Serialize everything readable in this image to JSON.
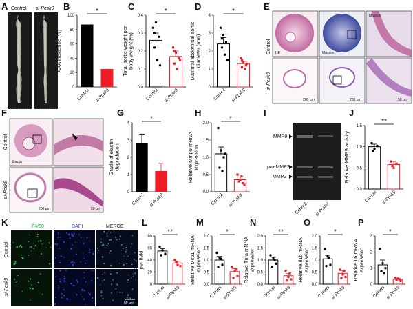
{
  "figure": {
    "panel_letters": [
      "A",
      "B",
      "C",
      "D",
      "E",
      "F",
      "G",
      "H",
      "I",
      "J",
      "K",
      "L",
      "M",
      "N",
      "O",
      "P"
    ],
    "group_labels": {
      "control": "Control",
      "si": "si-Pcsk9"
    },
    "panel_A": {
      "labels": [
        "Control",
        "si-Pcsk9"
      ]
    },
    "panel_E": {
      "col_labels": [
        "HE",
        "Masson",
        "Masson"
      ],
      "row_labels": [
        "Control",
        "si-Pcsk9"
      ],
      "scale_labels": [
        "200 μm",
        "200 μm",
        "50 μm"
      ]
    },
    "panel_F": {
      "row_labels": [
        "Control",
        "si-Pcsk9"
      ],
      "stain_label": "Elastin",
      "scale_labels": [
        "200 μm",
        "50 μm"
      ]
    },
    "panel_I": {
      "band_labels": [
        "MMP9",
        "pro-MMP2",
        "MMP2"
      ],
      "lane_labels": [
        "Control",
        "si-Pcsk9"
      ]
    },
    "panel_K": {
      "col_labels": [
        "F4/80",
        "DAPI",
        "MERGE"
      ],
      "row_labels": [
        "Control",
        "si-Pcsk9"
      ],
      "scale_label": "50 μm"
    },
    "significance": {
      "B": "*",
      "C": "*",
      "D": "*",
      "G": "*",
      "H": "*",
      "J": "**",
      "L": "**",
      "M": "*",
      "N": "**",
      "O": "*",
      "P": "*"
    },
    "colors": {
      "control": "#000000",
      "si": "#e8202a",
      "si_fill": "#ffffff",
      "bar_ctrl": "#000000",
      "bar_si": "#ee1c25"
    }
  },
  "chart_data": [
    {
      "panel": "B",
      "type": "bar",
      "categories": [
        "Control",
        "si-Pcsk9"
      ],
      "values": [
        87,
        25
      ],
      "ylabel": "AAA incidence (%)",
      "ylim": [
        0,
        100
      ],
      "yticks": [
        0,
        20,
        40,
        60,
        80,
        100
      ],
      "filled": true
    },
    {
      "panel": "C",
      "type": "bar",
      "categories": [
        "Control",
        "si-Pcsk9"
      ],
      "values": [
        0.26,
        0.17
      ],
      "errors": [
        0.04,
        0.03
      ],
      "points": [
        [
          0.33,
          0.36,
          0.28,
          0.22,
          0.15,
          0.12,
          0.3
        ],
        [
          0.22,
          0.19,
          0.16,
          0.13,
          0.1,
          0.15,
          0.2
        ]
      ],
      "ylabel": "Total aortic weight per body weight (%)",
      "ylim": [
        0,
        0.4
      ],
      "yticks": [
        0.0,
        0.1,
        0.2,
        0.3,
        0.4
      ]
    },
    {
      "panel": "D",
      "type": "bar",
      "categories": [
        "Control",
        "si-Pcsk9"
      ],
      "values": [
        2.4,
        1.3
      ],
      "errors": [
        0.35,
        0.12
      ],
      "points": [
        [
          3.3,
          2.9,
          2.5,
          2.2,
          1.8,
          1.5,
          2.7
        ],
        [
          1.6,
          1.4,
          1.2,
          1.1,
          1.0,
          1.3,
          1.5
        ]
      ],
      "ylabel": "Maximal abdominal aortic diameter (mm)",
      "ylim": [
        0,
        4
      ],
      "yticks": [
        0,
        1,
        2,
        3,
        4
      ]
    },
    {
      "panel": "G",
      "type": "bar",
      "categories": [
        "Control",
        "si-Pcsk9"
      ],
      "values": [
        2.8,
        1.2
      ],
      "errors": [
        0.5,
        0.45
      ],
      "ylabel": "Grade of elastin degradation",
      "ylim": [
        0,
        4
      ],
      "yticks": [
        0,
        1,
        2,
        3,
        4
      ],
      "filled": true
    },
    {
      "panel": "H",
      "type": "bar",
      "categories": [
        "Control",
        "si-Pcsk9"
      ],
      "values": [
        1.1,
        0.35
      ],
      "errors": [
        0.2,
        0.08
      ],
      "points": [
        [
          1.85,
          1.2,
          1.0,
          0.7,
          0.6,
          1.1
        ],
        [
          0.5,
          0.35,
          0.25,
          0.3,
          0.45,
          0.2
        ]
      ],
      "ylabel": "Relative Mmp9 mRNA expression",
      "ylim": [
        0,
        2.0
      ],
      "yticks": [
        0.0,
        0.5,
        1.0,
        1.5,
        2.0
      ]
    },
    {
      "panel": "J",
      "type": "bar",
      "categories": [
        "Control",
        "si-Pcsk9"
      ],
      "values": [
        1.0,
        0.58
      ],
      "errors": [
        0.06,
        0.07
      ],
      "points": [
        [
          1.08,
          0.95,
          1.02,
          0.9
        ],
        [
          0.65,
          0.5,
          0.6,
          0.55
        ]
      ],
      "ylabel": "Relative MMP9 activity",
      "ylim": [
        0,
        1.5
      ],
      "yticks": [
        0.0,
        0.5,
        1.0,
        1.5
      ]
    },
    {
      "panel": "L",
      "type": "bar",
      "categories": [
        "Control",
        "si-Pcsk9"
      ],
      "values": [
        55,
        35
      ],
      "errors": [
        4,
        3
      ],
      "points": [
        [
          62,
          56,
          50,
          48
        ],
        [
          40,
          32,
          30,
          36
        ]
      ],
      "ylabel": "Macrophage count per field",
      "ylim": [
        0,
        80
      ],
      "yticks": [
        0,
        20,
        40,
        60,
        80
      ]
    },
    {
      "panel": "M",
      "type": "bar",
      "categories": [
        "Control",
        "si-Pcsk9"
      ],
      "values": [
        1.0,
        0.52
      ],
      "errors": [
        0.15,
        0.12
      ],
      "points": [
        [
          1.3,
          1.1,
          0.8,
          0.7,
          1.05
        ],
        [
          0.7,
          0.55,
          0.35,
          0.25,
          0.6
        ]
      ],
      "ylabel": "Relative Mcp1 mRNA expression",
      "ylim": [
        0,
        2.0
      ],
      "yticks": [
        0.0,
        0.5,
        1.0,
        1.5,
        2.0
      ]
    },
    {
      "panel": "N",
      "type": "bar",
      "categories": [
        "Control",
        "si-Pcsk9"
      ],
      "values": [
        1.0,
        0.35
      ],
      "errors": [
        0.12,
        0.1
      ],
      "points": [
        [
          1.2,
          1.1,
          0.85,
          0.7,
          1.0
        ],
        [
          0.55,
          0.3,
          0.2,
          0.15,
          0.45
        ]
      ],
      "ylabel": "Relative Tnfa mRNA expression",
      "ylim": [
        0,
        2.0
      ],
      "yticks": [
        0.0,
        0.5,
        1.0,
        1.5,
        2.0
      ]
    },
    {
      "panel": "O",
      "type": "bar",
      "categories": [
        "Control",
        "si-Pcsk9"
      ],
      "values": [
        1.05,
        0.45
      ],
      "errors": [
        0.15,
        0.1
      ],
      "points": [
        [
          1.45,
          1.15,
          0.8,
          0.75,
          1.1
        ],
        [
          0.6,
          0.4,
          0.3,
          0.25,
          0.55
        ]
      ],
      "ylabel": "Relative Il1b mRNA expression",
      "ylim": [
        0,
        2.0
      ],
      "yticks": [
        0.0,
        0.5,
        1.0,
        1.5,
        2.0
      ]
    },
    {
      "panel": "P",
      "type": "bar",
      "categories": [
        "Control",
        "si-Pcsk9"
      ],
      "values": [
        1.2,
        0.3
      ],
      "errors": [
        0.3,
        0.06
      ],
      "points": [
        [
          2.2,
          1.3,
          1.0,
          0.8,
          0.7
        ],
        [
          0.4,
          0.35,
          0.2,
          0.25,
          0.3
        ]
      ],
      "ylabel": "Relative Il6 mRNA expression",
      "ylim": [
        0,
        3
      ],
      "yticks": [
        0,
        1,
        2,
        3
      ]
    }
  ]
}
